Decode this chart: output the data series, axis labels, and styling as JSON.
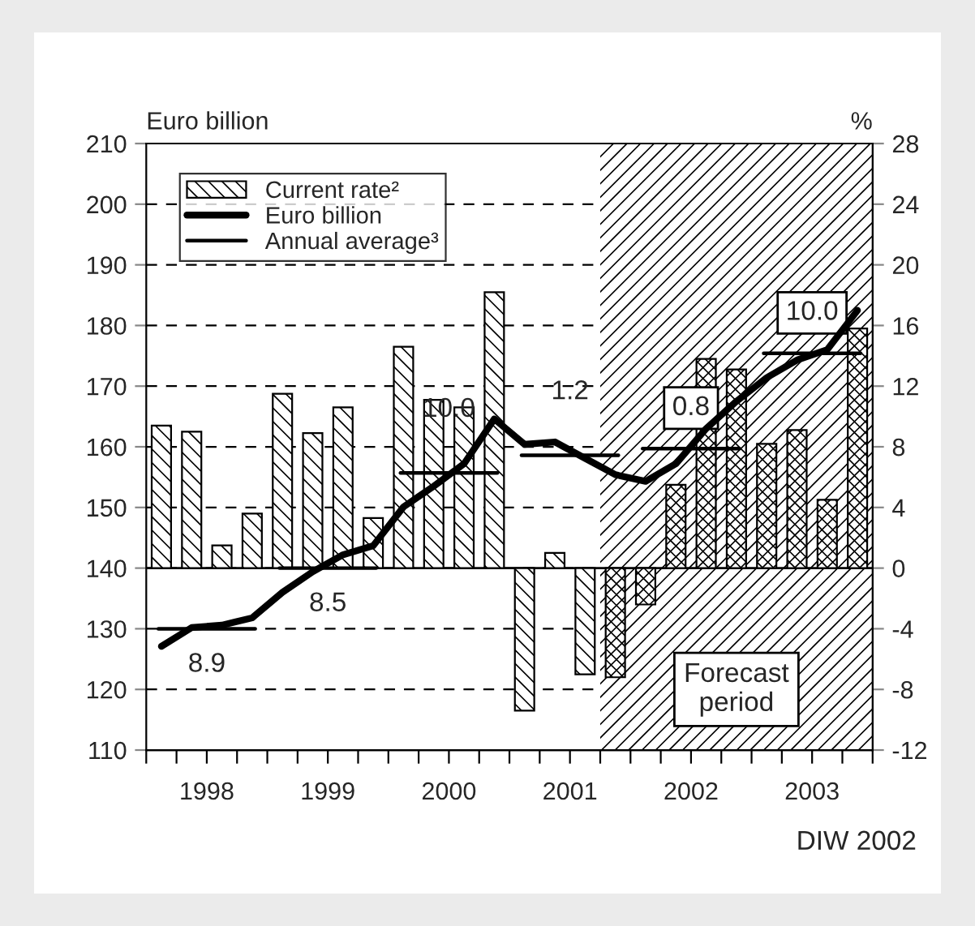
{
  "chart_data": {
    "type": "bar",
    "x": [
      1998.125,
      1998.375,
      1998.625,
      1998.875,
      1999.125,
      1999.375,
      1999.625,
      1999.875,
      2000.125,
      2000.375,
      2000.625,
      2000.875,
      2001.125,
      2001.375,
      2001.625,
      2001.875,
      2002.125,
      2002.375,
      2002.625,
      2002.875,
      2003.125,
      2003.375,
      2003.625,
      2003.875
    ],
    "ylabel": "Euro billion",
    "y2label": "%",
    "series": [
      {
        "name": "Current rate²",
        "axis": "y2",
        "color": "#000000",
        "values": [
          9.4,
          9.0,
          1.5,
          3.6,
          11.5,
          8.9,
          10.6,
          3.3,
          14.6,
          11.1,
          10.6,
          18.2,
          -9.4,
          1.0,
          -7.0,
          -7.2,
          -2.4,
          5.5,
          13.8,
          13.1,
          8.2,
          9.1,
          4.5,
          15.8
        ]
      },
      {
        "name": "Euro billion",
        "type": "line",
        "color": "#000000",
        "values": [
          127.1,
          130.2,
          130.6,
          131.8,
          136.0,
          139.4,
          142.2,
          143.7,
          150.1,
          153.5,
          157.2,
          164.6,
          160.4,
          160.8,
          158.1,
          155.4,
          154.3,
          157.2,
          163.0,
          167.5,
          171.4,
          174.3,
          176.0,
          182.5
        ]
      },
      {
        "name": "Annual average³",
        "type": "line",
        "color": "#000000",
        "x": [
          1998.1,
          1998.9
        ],
        "values": [
          130.0,
          130.0
        ]
      },
      {
        "type": "line",
        "color": "#000000",
        "x": [
          1999.1,
          1999.9
        ],
        "values": [
          140.0,
          140.0
        ]
      },
      {
        "type": "line",
        "color": "#000000",
        "x": [
          2000.1,
          2000.9
        ],
        "values": [
          155.7,
          155.7
        ]
      },
      {
        "type": "line",
        "color": "#000000",
        "x": [
          2001.1,
          2001.9
        ],
        "values": [
          158.6,
          158.6
        ]
      },
      {
        "type": "line",
        "color": "#000000",
        "x": [
          2002.1,
          2002.9
        ],
        "values": [
          159.7,
          159.7
        ]
      },
      {
        "type": "line",
        "color": "#000000",
        "x": [
          2003.1,
          2003.9
        ],
        "values": [
          175.4,
          175.4
        ]
      }
    ],
    "xlim": [
      1998,
      2004
    ],
    "xticks": [
      {
        "value": 1998,
        "label": null
      },
      {
        "value": 1998.25,
        "label": null
      },
      {
        "value": 1998.5,
        "label": "1998"
      },
      {
        "value": 1998.75,
        "label": null
      },
      {
        "value": 1999,
        "label": null
      },
      {
        "value": 1999.25,
        "label": null
      },
      {
        "value": 1999.5,
        "label": "1999"
      },
      {
        "value": 1999.75,
        "label": null
      },
      {
        "value": 2000,
        "label": null
      },
      {
        "value": 2000.25,
        "label": null
      },
      {
        "value": 2000.5,
        "label": "2000"
      },
      {
        "value": 2000.75,
        "label": null
      },
      {
        "value": 2001,
        "label": null
      },
      {
        "value": 2001.25,
        "label": null
      },
      {
        "value": 2001.5,
        "label": "2001"
      },
      {
        "value": 2001.75,
        "label": null
      },
      {
        "value": 2002,
        "label": null
      },
      {
        "value": 2002.25,
        "label": null
      },
      {
        "value": 2002.5,
        "label": "2002"
      },
      {
        "value": 2002.75,
        "label": null
      },
      {
        "value": 2003,
        "label": null
      },
      {
        "value": 2003.25,
        "label": null
      },
      {
        "value": 2003.5,
        "label": "2003"
      },
      {
        "value": 2003.75,
        "label": null
      },
      {
        "value": 2004,
        "label": null
      }
    ],
    "ylim": [
      110,
      210
    ],
    "yticks": [
      110,
      120,
      130,
      140,
      150,
      160,
      170,
      180,
      190,
      200,
      210
    ],
    "y2lim": [
      -12,
      28
    ],
    "y2ticks": [
      -12,
      -8,
      -4,
      0,
      4,
      8,
      12,
      16,
      20,
      24,
      28
    ],
    "bands": [
      {
        "axis": "x",
        "from": 2001.75,
        "to": 2004,
        "label": "Forecast period",
        "color": "#000000"
      }
    ],
    "ref_lines": [
      {
        "axis": "y2",
        "value": 0
      }
    ],
    "annotations": [
      {
        "text": "8.9",
        "x": 1998.5,
        "y": 130.0
      },
      {
        "text": "8.5",
        "x": 1999.5,
        "y": 140.0
      },
      {
        "text": "10.0",
        "x": 2000.5,
        "y": 155.7
      },
      {
        "text": "1.2",
        "x": 2001.5,
        "y": 158.6
      },
      {
        "text": "0.8",
        "x": 2002.5,
        "y": 159.7
      },
      {
        "text": "10.0",
        "x": 2003.5,
        "y": 175.4
      },
      "DIW 2002"
    ],
    "grid": "y",
    "legend": "top left"
  }
}
